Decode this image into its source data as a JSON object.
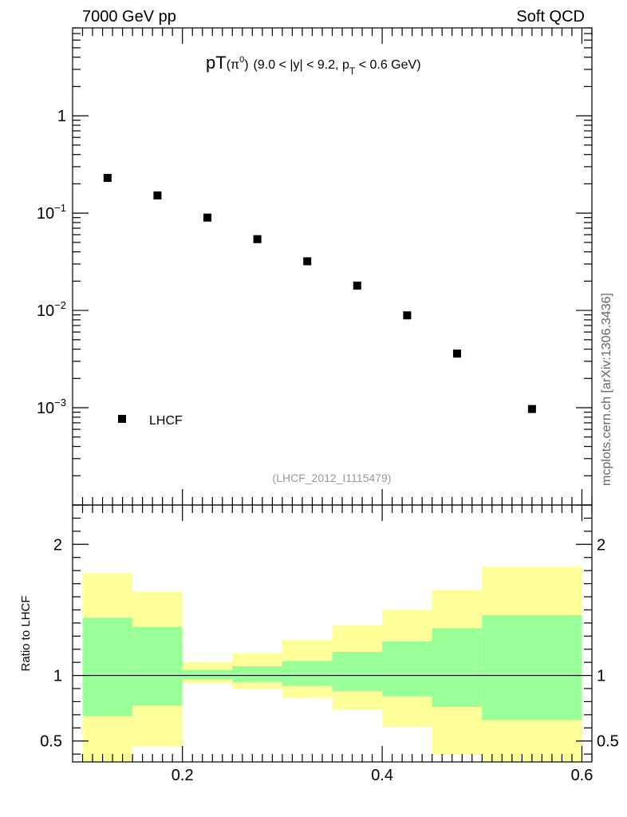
{
  "header": {
    "left_title": "7000 GeV pp",
    "right_title": "Soft QCD"
  },
  "title": {
    "main": "pT",
    "particle": "(π",
    "particle_sup": "0",
    "particle_close": ")",
    "cuts_pre": "(9.0 < |y| < 9.2, p",
    "cuts_sub": "T",
    "cuts_post": " < 0.6 GeV)"
  },
  "analysis_tag": "(LHCF_2012_I1115479)",
  "side_label": "mcplots.cern.ch [arXiv:1306.3436]",
  "ratio_ylabel": "Ratio to LHCF",
  "legend": {
    "label": "LHCF"
  },
  "colors": {
    "marker": "#000000",
    "band_inner": "#99ff99",
    "band_outer": "#ffff99",
    "ref_line": "#000000"
  },
  "chart_data": {
    "type": "scatter",
    "x_axis": {
      "range": [
        0.09,
        0.61
      ],
      "ticks": [
        0.2,
        0.4,
        0.6
      ],
      "tick_labels": [
        "0.2",
        "0.4",
        "0.6"
      ]
    },
    "main_panel": {
      "yscale": "log",
      "ylim": [
        0.0001,
        8
      ],
      "ticks": [
        {
          "value": 1,
          "base": "1",
          "exp": ""
        },
        {
          "value": 0.1,
          "base": "10",
          "exp": "−1"
        },
        {
          "value": 0.01,
          "base": "10",
          "exp": "−2"
        },
        {
          "value": 0.001,
          "base": "10",
          "exp": "−3"
        }
      ],
      "series": [
        {
          "name": "LHCF",
          "x": [
            0.125,
            0.175,
            0.225,
            0.275,
            0.325,
            0.375,
            0.425,
            0.475,
            0.55
          ],
          "y": [
            0.23,
            0.152,
            0.09,
            0.054,
            0.032,
            0.018,
            0.0089,
            0.0036,
            0.00097
          ]
        }
      ]
    },
    "ratio_panel": {
      "ylim": [
        0.34,
        2.3
      ],
      "ticks": [
        0.5,
        1,
        2
      ],
      "tick_labels": [
        "0.5",
        "1",
        "2"
      ],
      "reference": 1,
      "bins": [
        {
          "lo": 0.1,
          "hi": 0.15,
          "inner": [
            0.69,
            1.44
          ],
          "outer": [
            0.34,
            1.78
          ]
        },
        {
          "lo": 0.15,
          "hi": 0.2,
          "inner": [
            0.77,
            1.37
          ],
          "outer": [
            0.46,
            1.64
          ]
        },
        {
          "lo": 0.2,
          "hi": 0.25,
          "inner": [
            0.97,
            1.04
          ],
          "outer": [
            0.94,
            1.1
          ]
        },
        {
          "lo": 0.25,
          "hi": 0.3,
          "inner": [
            0.95,
            1.07
          ],
          "outer": [
            0.9,
            1.17
          ]
        },
        {
          "lo": 0.3,
          "hi": 0.35,
          "inner": [
            0.92,
            1.11
          ],
          "outer": [
            0.83,
            1.27
          ]
        },
        {
          "lo": 0.35,
          "hi": 0.4,
          "inner": [
            0.88,
            1.18
          ],
          "outer": [
            0.74,
            1.38
          ]
        },
        {
          "lo": 0.4,
          "hi": 0.45,
          "inner": [
            0.84,
            1.26
          ],
          "outer": [
            0.61,
            1.5
          ]
        },
        {
          "lo": 0.45,
          "hi": 0.5,
          "inner": [
            0.76,
            1.36
          ],
          "outer": [
            0.4,
            1.65
          ]
        },
        {
          "lo": 0.5,
          "hi": 0.6,
          "inner": [
            0.66,
            1.46
          ],
          "outer": [
            0.34,
            1.83
          ]
        }
      ]
    }
  }
}
